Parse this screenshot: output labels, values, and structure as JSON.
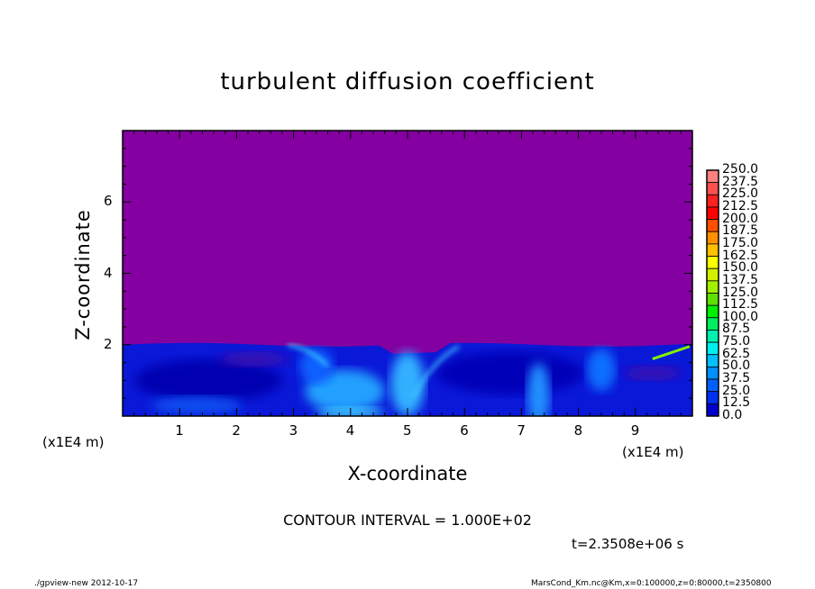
{
  "chart_data": {
    "type": "heatmap",
    "title": "turbulent diffusion coefficient",
    "xlabel": "X-coordinate",
    "ylabel": "Z-coordinate",
    "x_unit": "(x1E4 m)",
    "xlim": [
      0,
      10
    ],
    "ylim": [
      0,
      8
    ],
    "x_ticks": [
      "1",
      "2",
      "3",
      "4",
      "5",
      "6",
      "7",
      "8",
      "9"
    ],
    "y_ticks": [
      "2",
      "4",
      "6"
    ],
    "contour_interval": "CONTOUR INTERVAL = 1.000E+02",
    "time_label": "t=2.3508e+06 s",
    "field_description_values": {
      "background_value_above_layer": 0.0,
      "boundary_layer_top_z": 2.0,
      "typical_layer_value_range": [
        12.5,
        87.5
      ],
      "max_local_value_near_x9.8_z1.8": 150.0
    },
    "colorbar": {
      "labels": [
        "250.0",
        "237.5",
        "225.0",
        "212.5",
        "200.0",
        "187.5",
        "175.0",
        "162.5",
        "150.0",
        "137.5",
        "125.0",
        "112.5",
        "100.0",
        "87.5",
        "75.0",
        "62.5",
        "50.0",
        "37.5",
        "25.0",
        "12.5",
        "0.0"
      ],
      "colors": [
        "#ff8080",
        "#ff5050",
        "#ff2020",
        "#ff0000",
        "#ff5000",
        "#ff9000",
        "#ffc000",
        "#ffff00",
        "#d0f000",
        "#a0f000",
        "#60e000",
        "#00f000",
        "#00f060",
        "#00f0b0",
        "#00f0f0",
        "#00c0ff",
        "#0090ff",
        "#0060ff",
        "#0030f0",
        "#0000d0",
        "#2010a0",
        "#7000a8"
      ]
    }
  },
  "footer": {
    "left": "./gpview-new  2012-10-17",
    "right": "MarsCond_Km.nc@Km,x=0:100000,z=0:80000,t=2350800"
  },
  "colors": {
    "background_field": "#8400a0"
  }
}
